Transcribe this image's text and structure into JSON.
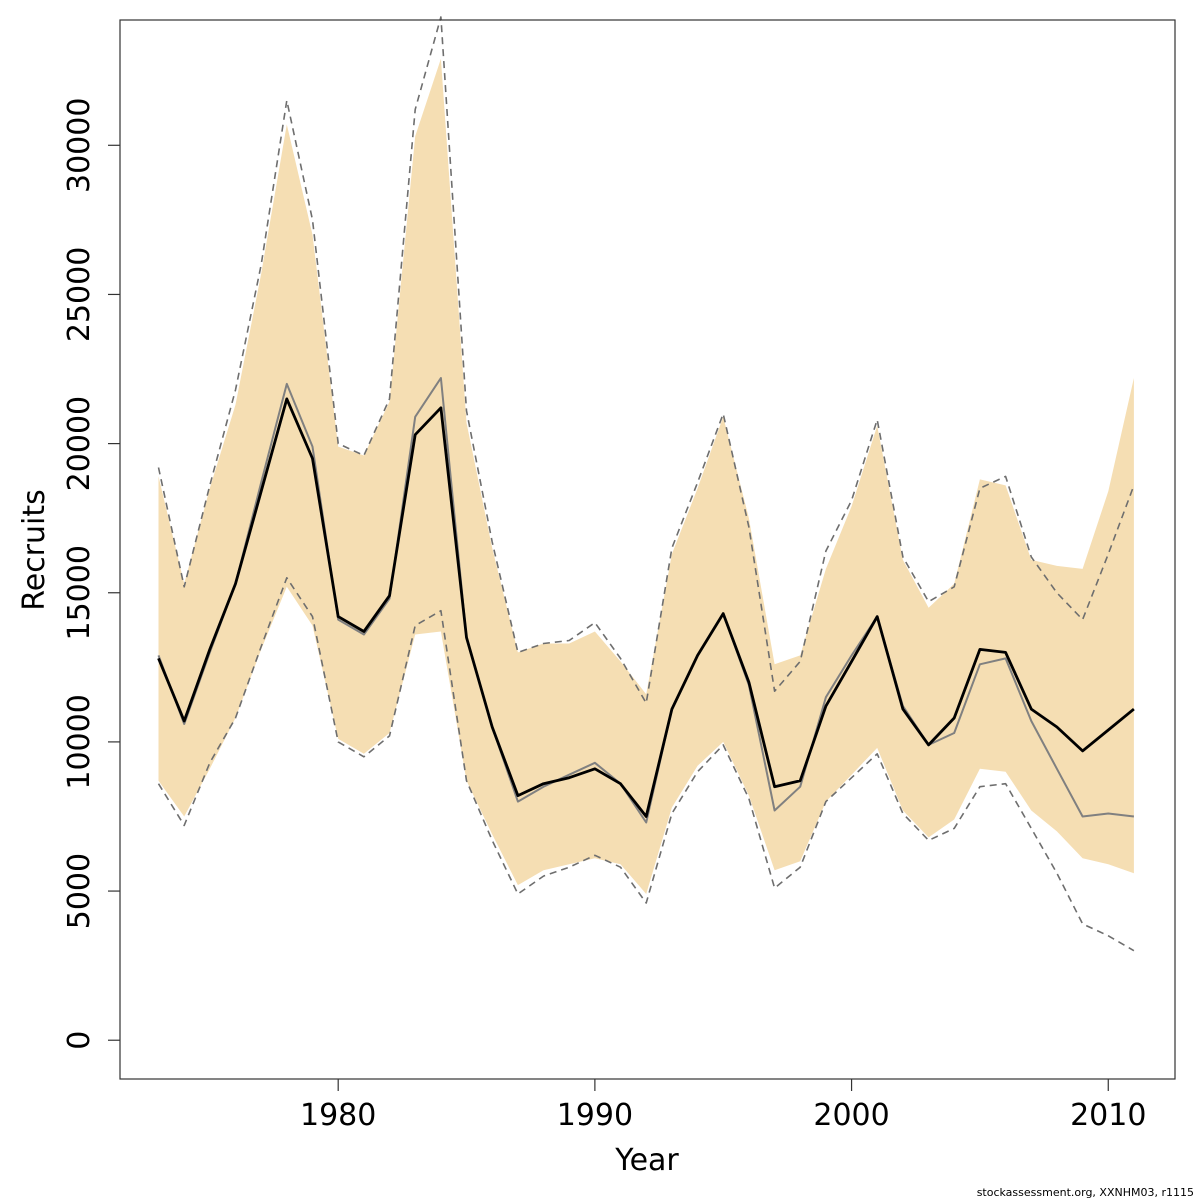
{
  "chart_data": {
    "type": "line",
    "xlabel": "Year",
    "ylabel": "Recruits",
    "credit": "stockassessment.org, XXNHM03, r1115",
    "xlim": [
      1971.5,
      2012.6
    ],
    "ylim": [
      -1300,
      34200
    ],
    "x_ticks": [
      1980,
      1990,
      2000,
      2010
    ],
    "y_ticks": [
      0,
      5000,
      10000,
      15000,
      20000,
      25000,
      30000
    ],
    "x": [
      1973,
      1974,
      1975,
      1976,
      1977,
      1978,
      1979,
      1980,
      1981,
      1982,
      1983,
      1984,
      1985,
      1986,
      1987,
      1988,
      1989,
      1990,
      1991,
      1992,
      1993,
      1994,
      1995,
      1996,
      1997,
      1998,
      1999,
      2000,
      2001,
      2002,
      2003,
      2004,
      2005,
      2006,
      2007,
      2008,
      2009,
      2010,
      2011
    ],
    "colors": {
      "band": "#f5deb3",
      "estimate": "#000000",
      "previous": "#808080",
      "previous_ci": "#6e6e6e"
    },
    "series": [
      {
        "key": "band_upper",
        "values": [
          18900,
          15300,
          18500,
          21300,
          25700,
          30700,
          27000,
          19900,
          19600,
          21400,
          30300,
          32900,
          20700,
          16500,
          13000,
          13300,
          13300,
          13700,
          12700,
          11600,
          16300,
          18500,
          20900,
          17500,
          12600,
          12900,
          15800,
          17900,
          20600,
          16100,
          14500,
          15300,
          18800,
          18600,
          16100,
          15900,
          15800,
          18400,
          22200
        ]
      },
      {
        "key": "band_lower",
        "values": [
          8700,
          7500,
          9100,
          10800,
          13100,
          15200,
          13900,
          10100,
          9600,
          10300,
          13600,
          13700,
          8700,
          6900,
          5200,
          5700,
          5900,
          6100,
          5900,
          4900,
          7800,
          9200,
          10000,
          8200,
          5700,
          6000,
          8000,
          8900,
          9800,
          7700,
          6800,
          7400,
          9100,
          9000,
          7700,
          7000,
          6100,
          5900,
          5600
        ]
      },
      {
        "key": "estimate",
        "values": [
          12800,
          10700,
          13100,
          15300,
          18400,
          21500,
          19500,
          14200,
          13700,
          14900,
          20300,
          21200,
          13500,
          10500,
          8200,
          8600,
          8800,
          9100,
          8600,
          7500,
          11100,
          12900,
          14300,
          12000,
          8500,
          8700,
          11200,
          12700,
          14200,
          11100,
          9900,
          10800,
          13100,
          13000,
          11100,
          10500,
          9700,
          10400,
          11100
        ]
      },
      {
        "key": "previous",
        "values": [
          12900,
          10600,
          13000,
          15300,
          18700,
          22000,
          19900,
          14100,
          13600,
          14800,
          20900,
          22200,
          13500,
          10500,
          8000,
          8500,
          8900,
          9300,
          8600,
          7300,
          11100,
          12900,
          14300,
          11900,
          7700,
          8500,
          11500,
          12900,
          14200,
          11200,
          9900,
          10300,
          12600,
          12800,
          10700,
          9100,
          7500,
          7600,
          7500
        ]
      },
      {
        "key": "previous_upper",
        "values": [
          19200,
          15200,
          18600,
          21800,
          26000,
          31500,
          27500,
          20000,
          19600,
          21500,
          31200,
          34300,
          21100,
          16700,
          13000,
          13300,
          13400,
          14000,
          12800,
          11300,
          16500,
          18700,
          21000,
          17200,
          11700,
          12700,
          16400,
          18100,
          20800,
          16200,
          14700,
          15200,
          18500,
          18900,
          16200,
          15000,
          14100,
          16300,
          18600
        ]
      },
      {
        "key": "previous_lower",
        "values": [
          8600,
          7200,
          9300,
          10800,
          13200,
          15500,
          14200,
          10000,
          9500,
          10200,
          13900,
          14400,
          8700,
          6700,
          4900,
          5500,
          5800,
          6200,
          5800,
          4600,
          7600,
          9000,
          9900,
          8100,
          5100,
          5800,
          8000,
          8800,
          9600,
          7600,
          6700,
          7100,
          8500,
          8600,
          7100,
          5600,
          3900,
          3500,
          3000
        ]
      }
    ]
  }
}
